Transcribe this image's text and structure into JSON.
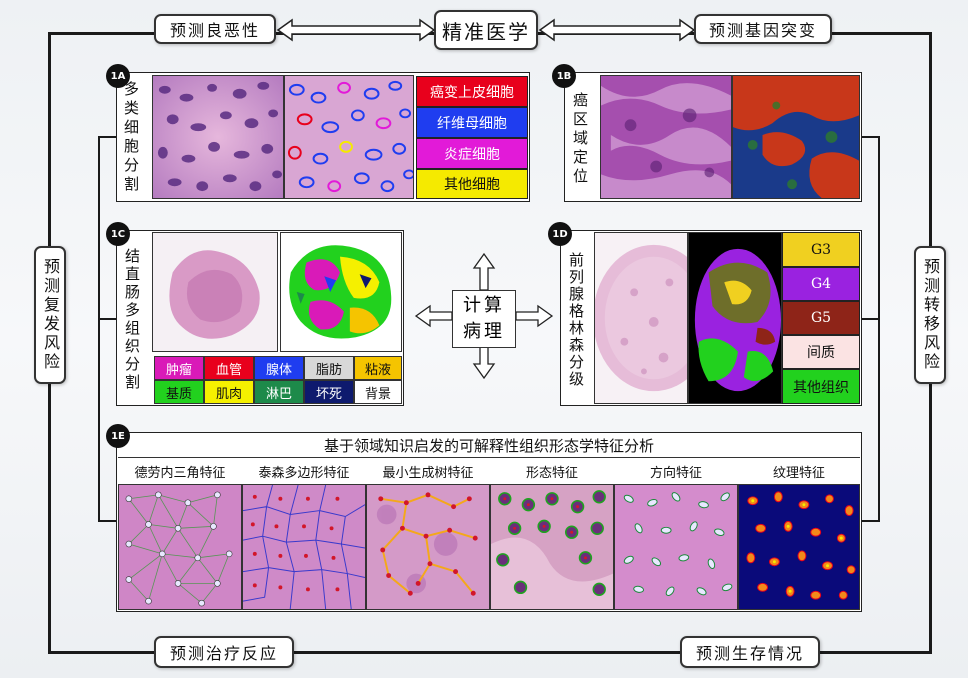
{
  "center_title": "精准医学",
  "core": {
    "line1": "计算",
    "line2": "病理"
  },
  "outcomes": {
    "benign_malignant": "预测良恶性",
    "gene_mutation": "预测基因突变",
    "recurrence_risk": "预测复发风险",
    "metastasis_risk": "预测转移风险",
    "treatment_response": "预测治疗反应",
    "survival": "预测生存情况"
  },
  "panel_1A": {
    "badge": "1A",
    "title": "多类细胞分割",
    "legend": [
      {
        "label": "癌变上皮细胞",
        "color": "#e8001c",
        "text_color": "#ffffff"
      },
      {
        "label": "纤维母细胞",
        "color": "#1f3df0",
        "text_color": "#ffffff"
      },
      {
        "label": "炎症细胞",
        "color": "#e21ad8",
        "text_color": "#ffffff"
      },
      {
        "label": "其他细胞",
        "color": "#f5ea00",
        "text_color": "#111111"
      }
    ]
  },
  "panel_1B": {
    "badge": "1B",
    "title": "癌区域定位"
  },
  "panel_1C": {
    "badge": "1C",
    "title": "结直肠多组织分割",
    "categories": [
      {
        "label": "肿瘤",
        "color": "#d91ab8",
        "text_color": "#ffffff"
      },
      {
        "label": "血管",
        "color": "#e8001c",
        "text_color": "#ffffff"
      },
      {
        "label": "腺体",
        "color": "#1f3df0",
        "text_color": "#ffffff"
      },
      {
        "label": "脂肪",
        "color": "#d8d8d8",
        "text_color": "#111111"
      },
      {
        "label": "粘液",
        "color": "#f5c400",
        "text_color": "#111111"
      },
      {
        "label": "基质",
        "color": "#22d11e",
        "text_color": "#111111"
      },
      {
        "label": "肌肉",
        "color": "#f5f000",
        "text_color": "#111111"
      },
      {
        "label": "淋巴",
        "color": "#1d8a4a",
        "text_color": "#ffffff"
      },
      {
        "label": "坏死",
        "color": "#0e1a6e",
        "text_color": "#ffffff"
      },
      {
        "label": "背景",
        "color": "#ffffff",
        "text_color": "#111111"
      }
    ]
  },
  "panel_1D": {
    "badge": "1D",
    "title": "前列腺格林森分级",
    "grades": [
      {
        "label": "G3",
        "color": "#f0d020",
        "text_color": "#111111"
      },
      {
        "label": "G4",
        "color": "#9a22e0",
        "text_color": "#ffffff"
      },
      {
        "label": "G5",
        "color": "#8e2418",
        "text_color": "#ffffff"
      },
      {
        "label": "间质",
        "color": "#fbe3e3",
        "text_color": "#111111"
      },
      {
        "label": "其他组织",
        "color": "#22d11e",
        "text_color": "#111111"
      }
    ]
  },
  "panel_1E": {
    "badge": "1E",
    "title": "基于领域知识启发的可解释性组织形态学特征分析",
    "features": [
      "德劳内三角特征",
      "泰森多边形特征",
      "最小生成树特征",
      "形态特征",
      "方向特征",
      "纹理特征"
    ]
  },
  "colors": {
    "frame": "#1a1a1a",
    "he_pink": "#d98bbf",
    "he_purple": "#7a2f8c",
    "heatmap_bg": "#0a0a7a"
  },
  "icons": [
    "double-arrow-icon",
    "four-way-arrow-icon"
  ]
}
